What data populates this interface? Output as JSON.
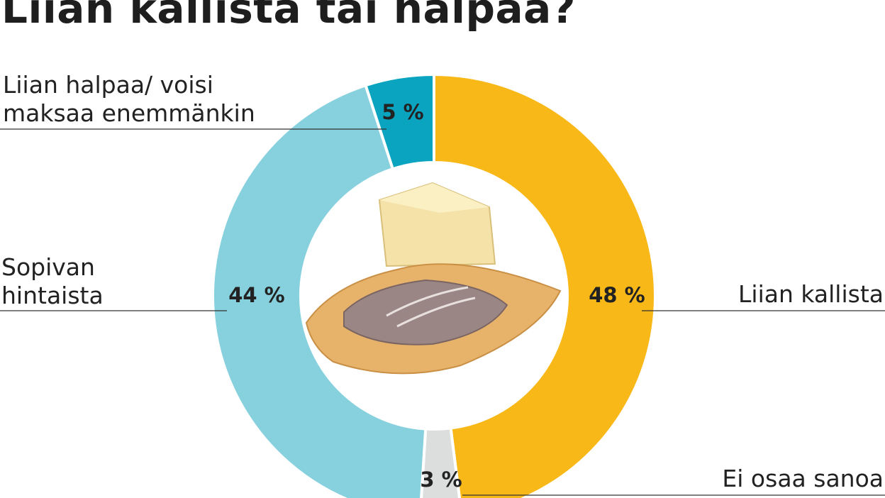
{
  "chart_data": {
    "type": "pie",
    "donut": true,
    "title": "Liian kallista tai halpaa?",
    "categories": [
      "Liian kallista",
      "Ei osaa sanoa",
      "Sopivan hintaista",
      "Liian halpaa/ voisi maksaa enemmänkin"
    ],
    "values": [
      48,
      3,
      44,
      5
    ],
    "value_labels": [
      "48 %",
      "3 %",
      "44 %",
      "5 %"
    ],
    "colors": [
      "#f8b817",
      "#dcdddd",
      "#87d1de",
      "#0ba4c0"
    ]
  }
}
